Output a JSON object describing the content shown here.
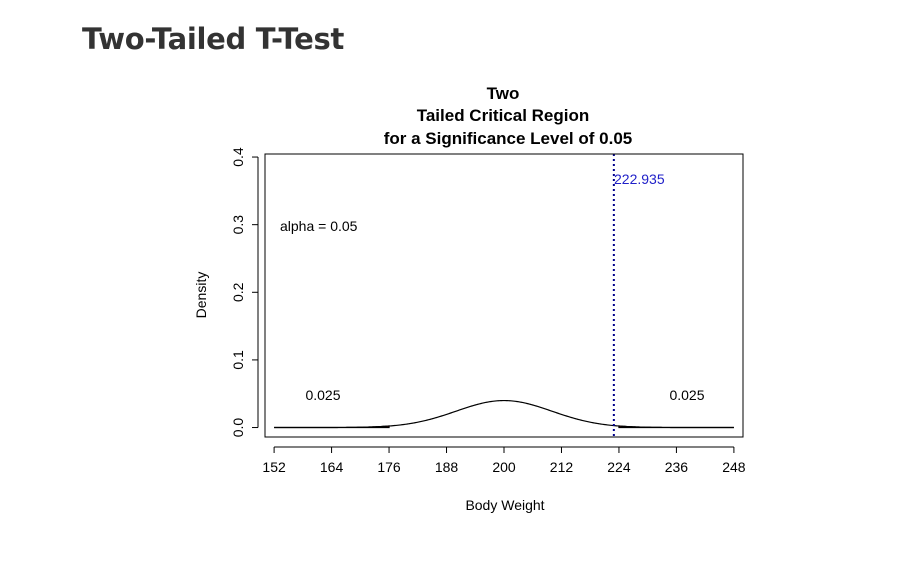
{
  "page": {
    "heading": "Two-Tailed T-Test"
  },
  "chart_data": {
    "type": "area",
    "title": [
      "Two",
      "Tailed Critical Region",
      "for a Significance Level of 0.05"
    ],
    "xlabel": "Body Weight",
    "ylabel": "Density",
    "xlim": [
      150.1,
      249.9
    ],
    "ylim": [
      -0.014,
      0.4045
    ],
    "x_ticks": [
      "152",
      "164",
      "176",
      "188",
      "200",
      "212",
      "224",
      "236",
      "248"
    ],
    "y_ticks": [
      "0.0",
      "0.1",
      "0.2",
      "0.3",
      "0.4"
    ],
    "distribution": {
      "mean": 200,
      "sd": 10,
      "x_range": [
        152,
        248
      ]
    },
    "shaded_regions": [
      {
        "from": 152,
        "to": 176,
        "fill": "#ff0000"
      },
      {
        "from": 224,
        "to": 248,
        "fill": "#ff0000"
      }
    ],
    "critical_line": {
      "x": 222.935,
      "color": "#00008b",
      "style": "dotted"
    },
    "annotations": {
      "alpha": "alpha = 0.05",
      "left_tail": "0.025",
      "right_tail": "0.025",
      "critical_value": "222.935",
      "critical_value_color": "#1f1fc8"
    },
    "grid": false
  }
}
